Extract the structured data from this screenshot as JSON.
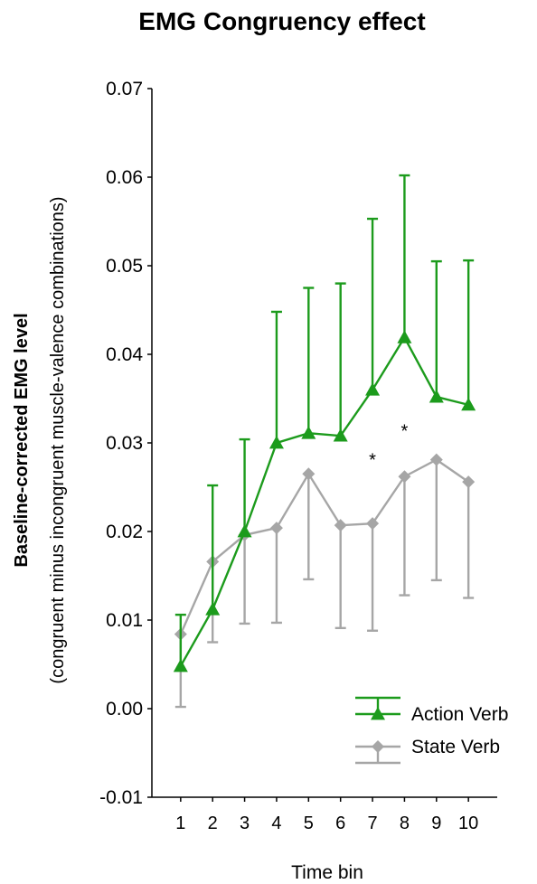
{
  "chart_data": {
    "type": "line",
    "title": "EMG Congruency effect",
    "xlabel": "Time bin",
    "ylabel": "Baseline-corrected EMG level",
    "ylabel_sub": "(congruent minus incongruent muscle-valence combinations)",
    "x": [
      1,
      2,
      3,
      4,
      5,
      6,
      7,
      8,
      9,
      10
    ],
    "x_tick_labels": [
      "1",
      "2",
      "3",
      "4",
      "5",
      "6",
      "7",
      "8",
      "9",
      "10"
    ],
    "ylim": [
      -0.01,
      0.07
    ],
    "y_ticks": [
      -0.01,
      0.0,
      0.01,
      0.02,
      0.03,
      0.04,
      0.05,
      0.06,
      0.07
    ],
    "y_tick_labels": [
      "-0.01",
      "0.00",
      "0.01",
      "0.02",
      "0.03",
      "0.04",
      "0.05",
      "0.06",
      "0.07"
    ],
    "grid": false,
    "legend_position": "bottom-right",
    "series": [
      {
        "name": "Action Verb",
        "color": "#1c9b1c",
        "marker": "triangle",
        "values": [
          0.0048,
          0.0112,
          0.02,
          0.03,
          0.0311,
          0.0308,
          0.036,
          0.0419,
          0.0352,
          0.0343
        ],
        "error_direction": "up",
        "error": [
          0.0058,
          0.014,
          0.0104,
          0.0148,
          0.0164,
          0.0172,
          0.0193,
          0.0183,
          0.0153,
          0.0163
        ]
      },
      {
        "name": "State Verb",
        "color": "#a6a6a6",
        "marker": "diamond",
        "values": [
          0.0084,
          0.0166,
          0.0196,
          0.0204,
          0.0265,
          0.0207,
          0.0209,
          0.0262,
          0.0281,
          0.0256
        ],
        "error_direction": "down",
        "error": [
          0.0082,
          0.0091,
          0.01,
          0.0107,
          0.0119,
          0.0116,
          0.0121,
          0.0134,
          0.0136,
          0.0131
        ]
      }
    ],
    "annotations": [
      {
        "text": "*",
        "x": 7,
        "y": 0.0282
      },
      {
        "text": "*",
        "x": 8,
        "y": 0.0315
      }
    ]
  }
}
